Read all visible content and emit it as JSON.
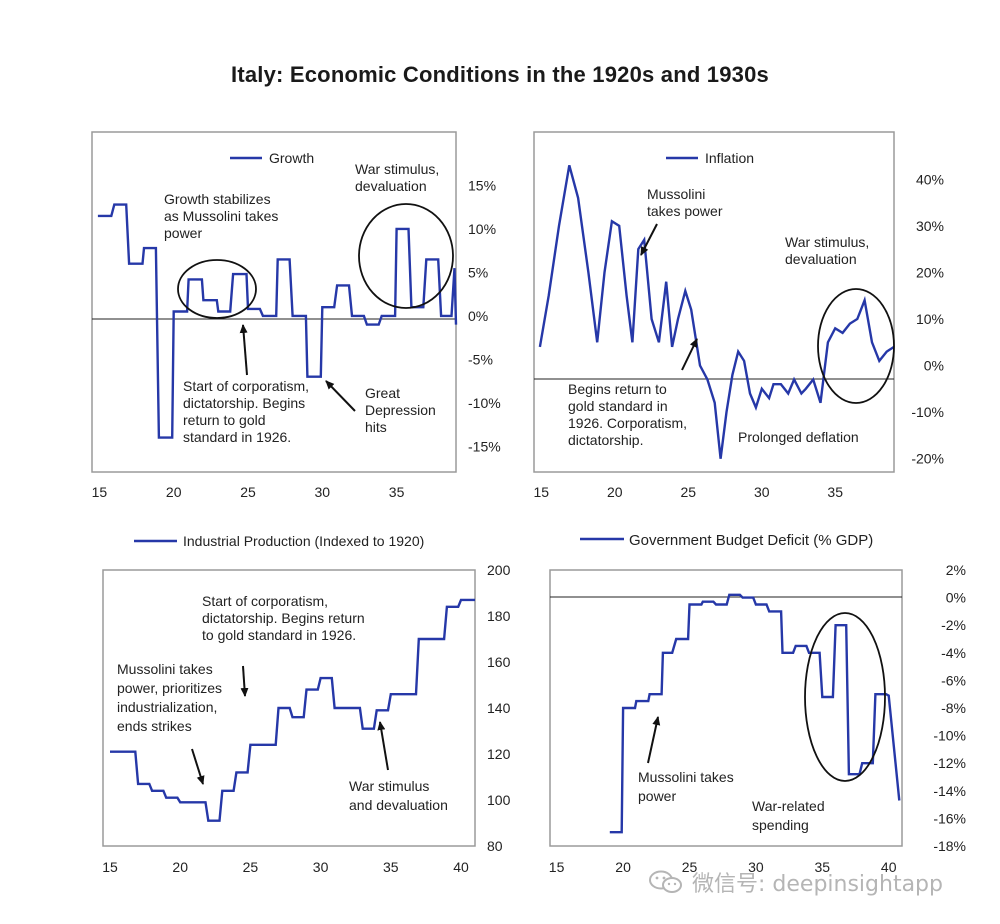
{
  "title": "Italy: Economic Conditions in the 1920s and 1930s",
  "watermark": {
    "text": "微信号: deepinsightapp"
  },
  "colors": {
    "line": "#2638a8",
    "frame": "#9a9a9a",
    "annotation": "#111111",
    "watermark": "#b5b5b5"
  },
  "chart_data": [
    {
      "id": "growth",
      "type": "line",
      "legend": "Growth",
      "x": [
        14.9,
        15.8,
        16.0,
        16.8,
        17.0,
        17.9,
        18.0,
        18.8,
        19.0,
        19.9,
        20.0,
        20.9,
        21.0,
        21.9,
        22.0,
        22.9,
        23.0,
        23.8,
        24.0,
        24.9,
        25.0,
        25.8,
        26.0,
        26.9,
        27.0,
        27.8,
        28.0,
        28.9,
        29.0,
        29.9,
        30.0,
        30.8,
        31.0,
        31.8,
        32.0,
        32.8,
        33.0,
        33.8,
        34.0,
        34.9,
        35.0,
        35.8,
        36.0,
        36.8,
        37.0,
        37.8,
        38.0,
        38.7,
        38.9,
        39.0
      ],
      "y": [
        11.5,
        11.5,
        12.8,
        12.8,
        6,
        6,
        7.8,
        7.8,
        -14,
        -14,
        0.5,
        0.5,
        4.2,
        4.2,
        1.8,
        1.8,
        0.5,
        0.5,
        4.8,
        4.8,
        0.8,
        0.8,
        0,
        0,
        6.5,
        6.5,
        0,
        0,
        -7,
        -7,
        1,
        1,
        3.5,
        3.5,
        0,
        0,
        -1,
        -1,
        0,
        0,
        10,
        10,
        1,
        1,
        6.5,
        6.5,
        0,
        0,
        5.5,
        -1
      ],
      "xlim": [
        14.5,
        39
      ],
      "ylim": [
        -17.5,
        20
      ],
      "xticks": [
        15,
        20,
        25,
        30,
        35
      ],
      "yticks": [
        15,
        10,
        5,
        0,
        -5,
        -10,
        -15
      ],
      "ytick_labels": [
        "15%",
        "10%",
        "5%",
        "0%",
        "-5%",
        "-10%",
        "-15%"
      ],
      "annotations": [
        {
          "lines": [
            "Growth stabilizes",
            "as Mussolini takes",
            "power"
          ]
        },
        {
          "lines": [
            "War stimulus,",
            "devaluation"
          ]
        },
        {
          "lines": [
            "Start of corporatism,",
            "dictatorship. Begins",
            "return to gold",
            "standard in 1926."
          ]
        },
        {
          "lines": [
            "Great",
            "Depression",
            "hits"
          ]
        }
      ]
    },
    {
      "id": "inflation",
      "type": "line",
      "legend": "Inflation",
      "x": [
        14.9,
        15.5,
        16.2,
        16.9,
        17.5,
        18.2,
        18.8,
        19.3,
        19.8,
        20.3,
        20.8,
        21.2,
        21.6,
        22.0,
        22.5,
        23.0,
        23.5,
        23.9,
        24.3,
        24.8,
        25.2,
        25.8,
        26.3,
        26.8,
        27.2,
        27.6,
        28.0,
        28.4,
        28.8,
        29.2,
        29.6,
        30.0,
        30.5,
        30.8,
        31.3,
        31.8,
        32.2,
        32.7,
        33.0,
        33.5,
        34.0,
        34.5,
        35.0,
        35.5,
        36.0,
        36.5,
        37.0,
        37.5,
        38.0,
        38.5,
        39.0
      ],
      "y": [
        4,
        15,
        30,
        43,
        36,
        20,
        5,
        20,
        31,
        30,
        15,
        5,
        25,
        27,
        10,
        5,
        18,
        4,
        10,
        16,
        12,
        0,
        -3,
        -8,
        -20,
        -10,
        -2,
        3,
        1,
        -6,
        -9,
        -5,
        -7,
        -4,
        -4,
        -6,
        -3,
        -6,
        -5,
        -3,
        -8,
        5,
        8,
        7,
        9,
        10,
        14,
        5,
        1,
        3,
        4
      ],
      "xlim": [
        14.5,
        39
      ],
      "ylim": [
        -22,
        48
      ],
      "xticks": [
        15,
        20,
        25,
        30,
        35
      ],
      "yticks": [
        40,
        30,
        20,
        10,
        0,
        -10,
        -20
      ],
      "ytick_labels": [
        "40%",
        "30%",
        "20%",
        "10%",
        "0%",
        "-10%",
        "-20%"
      ],
      "annotations": [
        {
          "lines": [
            "Mussolini",
            "takes power"
          ]
        },
        {
          "lines": [
            "War stimulus,",
            "devaluation"
          ]
        },
        {
          "lines": [
            "Begins return to",
            "gold standard in",
            "1926. Corporatism,",
            "dictatorship."
          ]
        },
        {
          "lines": [
            "Prolonged deflation"
          ]
        }
      ]
    },
    {
      "id": "industrial",
      "type": "line",
      "legend": "Industrial Production (Indexed to 1920)",
      "x": [
        15,
        16.8,
        17,
        17.8,
        18,
        18.8,
        19,
        19.8,
        20,
        20.8,
        21,
        21.8,
        22,
        22.8,
        23,
        23.8,
        24,
        24.8,
        25,
        26.8,
        27,
        27.8,
        28,
        28.8,
        29,
        29.8,
        30,
        30.8,
        31,
        32.8,
        33,
        33.8,
        34,
        34.8,
        35,
        36.8,
        37,
        38.8,
        39,
        39.8,
        40,
        41
      ],
      "y": [
        121,
        121,
        107,
        107,
        104,
        104,
        101,
        101,
        99,
        99,
        99,
        99,
        91,
        91,
        104,
        104,
        112,
        112,
        124,
        124,
        140,
        140,
        136,
        136,
        148,
        148,
        153,
        153,
        140,
        140,
        131,
        131,
        139,
        139,
        146,
        146,
        170,
        170,
        184,
        184,
        187,
        187
      ],
      "xlim": [
        14.5,
        41
      ],
      "ylim": [
        80,
        200
      ],
      "xticks": [
        15,
        20,
        25,
        30,
        35,
        40
      ],
      "yticks": [
        200,
        180,
        160,
        140,
        120,
        100,
        80
      ],
      "ytick_labels": [
        "200",
        "180",
        "160",
        "140",
        "120",
        "100",
        "80"
      ],
      "annotations": [
        {
          "lines": [
            "Start of corporatism,",
            "dictatorship. Begins return",
            "to gold standard in 1926."
          ]
        },
        {
          "lines": [
            "Mussolini takes",
            "power, prioritizes",
            "industrialization,",
            "ends strikes"
          ]
        },
        {
          "lines": [
            "War stimulus",
            "and devaluation"
          ]
        }
      ]
    },
    {
      "id": "deficit",
      "type": "line",
      "legend": "Government Budget Deficit (% GDP)",
      "x": [
        19,
        19.9,
        20,
        20.9,
        21,
        21.9,
        22,
        22.9,
        23,
        23.7,
        24,
        24.9,
        25,
        25.9,
        26,
        26.8,
        27,
        27.8,
        28,
        28.8,
        29,
        29.8,
        30,
        30.8,
        31,
        31.9,
        32,
        32.8,
        33,
        33.8,
        34,
        34.8,
        35,
        35.8,
        36,
        36.8,
        37,
        37.8,
        38,
        38.8,
        39,
        39.8,
        40,
        40.8
      ],
      "y": [
        -17,
        -17,
        -8,
        -8,
        -7.5,
        -7.5,
        -7,
        -7,
        -4,
        -4,
        -3,
        -3,
        -0.5,
        -0.5,
        -0.3,
        -0.3,
        -0.5,
        -0.5,
        0.2,
        0.2,
        0,
        0,
        -0.5,
        -0.5,
        -1,
        -1,
        -4,
        -4,
        -3.5,
        -3.5,
        -4,
        -4,
        -7.2,
        -7.2,
        -2,
        -2,
        -12.8,
        -12.8,
        -12,
        -12,
        -7,
        -7,
        -7.1,
        -14.7
      ],
      "xlim": [
        14.5,
        41
      ],
      "ylim": [
        -18,
        2
      ],
      "xticks": [
        15,
        20,
        25,
        30,
        35,
        40
      ],
      "yticks": [
        2,
        0,
        -2,
        -4,
        -6,
        -8,
        -10,
        -12,
        -14,
        -16,
        -18
      ],
      "ytick_labels": [
        "2%",
        "0%",
        "-2%",
        "-4%",
        "-6%",
        "-8%",
        "-10%",
        "-12%",
        "-14%",
        "-16%",
        "-18%"
      ],
      "annotations": [
        {
          "lines": [
            "Mussolini takes",
            "power"
          ]
        },
        {
          "lines": [
            "War-related",
            "spending"
          ]
        }
      ]
    }
  ]
}
